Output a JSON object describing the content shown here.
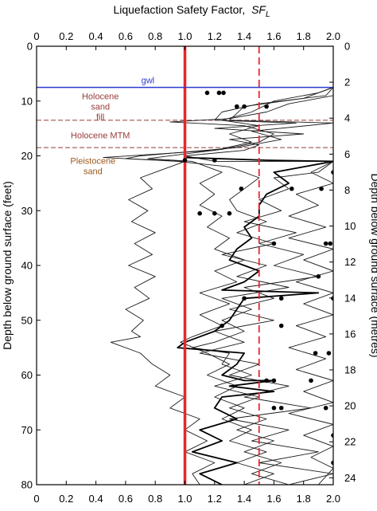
{
  "chart_data": {
    "type": "line",
    "title": "",
    "top_axis_label": "Liquefaction Safety Factor,",
    "top_axis_symbol": "SF",
    "top_axis_subscript": "L",
    "bottom_axis_label": "",
    "left_axis_label": "Depth below ground surface (feet)",
    "right_axis_label": "Depth below ground surface (metres)",
    "xlim": [
      0,
      2.0
    ],
    "x_ticks": [
      "0",
      "0.2",
      "0.4",
      "0.6",
      "0.8",
      "1.0",
      "1.2",
      "1.4",
      "1.6",
      "1.8",
      "2.0"
    ],
    "ylim_feet": [
      0,
      80
    ],
    "y_ticks_feet": [
      "0",
      "10",
      "20",
      "30",
      "40",
      "50",
      "60",
      "70",
      "80"
    ],
    "y_ticks_metres": [
      "0",
      "2",
      "4",
      "6",
      "8",
      "10",
      "12",
      "14",
      "16",
      "18",
      "20",
      "22",
      "24"
    ],
    "reference_lines": [
      {
        "x": 1.0,
        "style": "solid",
        "color": "#e8262a"
      },
      {
        "x": 1.5,
        "style": "dashed",
        "color": "#e8262a"
      }
    ],
    "gwl": {
      "depth_ft": 7.5,
      "label": "gwl",
      "color": "#2b3bcf"
    },
    "layer_boundaries_ft": [
      13.5,
      18.5
    ],
    "layers": [
      {
        "lines": [
          "Holocene",
          "sand",
          "fill"
        ],
        "color": "#9b3b3b"
      },
      {
        "lines": [
          "Holocene MTM"
        ],
        "color": "#9b3b3b"
      },
      {
        "lines": [
          "Pleistocene",
          "sand"
        ],
        "color": "#9c5a1e"
      }
    ],
    "grid": false,
    "series": [
      {
        "values": [
          [
            2.0,
            0
          ],
          [
            2.0,
            7.5
          ],
          [
            1.95,
            9
          ],
          [
            1.5,
            10.5
          ],
          [
            1.25,
            12
          ],
          [
            1.2,
            13.5
          ],
          [
            1.75,
            14
          ],
          [
            1.2,
            15
          ],
          [
            1.8,
            16
          ],
          [
            1.3,
            17
          ],
          [
            1.5,
            18
          ],
          [
            1.4,
            19
          ],
          [
            1.0,
            20
          ],
          [
            1.2,
            21
          ],
          [
            2.0,
            21
          ],
          [
            1.9,
            23
          ],
          [
            1.6,
            24
          ],
          [
            1.7,
            26
          ],
          [
            1.5,
            28
          ],
          [
            1.65,
            30
          ],
          [
            1.4,
            32
          ],
          [
            1.75,
            34
          ],
          [
            1.5,
            36
          ],
          [
            1.8,
            38
          ],
          [
            1.6,
            40
          ],
          [
            1.9,
            42
          ],
          [
            1.4,
            44
          ],
          [
            1.6,
            46
          ],
          [
            1.3,
            48
          ],
          [
            1.6,
            50
          ],
          [
            1.2,
            52
          ],
          [
            1.4,
            54
          ],
          [
            1.1,
            56
          ],
          [
            1.5,
            58
          ],
          [
            1.3,
            60
          ],
          [
            1.7,
            62
          ],
          [
            1.4,
            64
          ],
          [
            1.85,
            66
          ],
          [
            1.3,
            68
          ],
          [
            1.7,
            70
          ],
          [
            1.45,
            72
          ],
          [
            1.9,
            74
          ],
          [
            1.5,
            76
          ],
          [
            2.0,
            78
          ],
          [
            1.7,
            80
          ]
        ]
      },
      {
        "values": [
          [
            2.0,
            7.5
          ],
          [
            1.8,
            9.5
          ],
          [
            1.4,
            11
          ],
          [
            1.3,
            13.5
          ],
          [
            2.0,
            14
          ],
          [
            1.45,
            15.5
          ],
          [
            1.65,
            17
          ],
          [
            1.35,
            18.5
          ],
          [
            0.7,
            20
          ],
          [
            0.6,
            20.5
          ],
          [
            1.0,
            21
          ],
          [
            0.9,
            22
          ],
          [
            0.8,
            23
          ],
          [
            0.7,
            24
          ],
          [
            0.78,
            26
          ],
          [
            0.62,
            28
          ],
          [
            0.75,
            30
          ],
          [
            0.64,
            32
          ],
          [
            0.8,
            34
          ],
          [
            0.66,
            36
          ],
          [
            0.78,
            38
          ],
          [
            0.62,
            40
          ],
          [
            0.8,
            42
          ],
          [
            0.66,
            44
          ],
          [
            0.76,
            46
          ],
          [
            0.6,
            48
          ],
          [
            0.72,
            50
          ],
          [
            0.64,
            52
          ],
          [
            0.7,
            53
          ],
          [
            0.5,
            54
          ],
          [
            0.7,
            56
          ],
          [
            0.78,
            58
          ],
          [
            0.9,
            60
          ],
          [
            0.8,
            62
          ],
          [
            1.0,
            64
          ],
          [
            0.9,
            66
          ],
          [
            1.1,
            68
          ],
          [
            1.0,
            70
          ],
          [
            1.15,
            72
          ],
          [
            1.0,
            74
          ],
          [
            1.2,
            76
          ],
          [
            1.05,
            78
          ],
          [
            1.1,
            80
          ]
        ]
      },
      {
        "values": [
          [
            2.0,
            7.5
          ],
          [
            1.9,
            8.5
          ],
          [
            1.6,
            10
          ],
          [
            1.45,
            12
          ],
          [
            1.25,
            13.5
          ],
          [
            1.5,
            14.5
          ],
          [
            1.3,
            16
          ],
          [
            1.45,
            17.5
          ],
          [
            1.2,
            19
          ],
          [
            0.45,
            20.3
          ],
          [
            0.95,
            21
          ],
          [
            1.3,
            22
          ],
          [
            1.5,
            24
          ],
          [
            1.4,
            26
          ],
          [
            1.3,
            28
          ],
          [
            1.35,
            30
          ],
          [
            1.55,
            32
          ],
          [
            1.35,
            34
          ],
          [
            1.6,
            36
          ],
          [
            1.25,
            38
          ],
          [
            1.55,
            40
          ],
          [
            1.35,
            42
          ],
          [
            1.7,
            44
          ],
          [
            1.25,
            46
          ],
          [
            1.45,
            48
          ],
          [
            1.25,
            50
          ],
          [
            1.4,
            52
          ],
          [
            1.2,
            54
          ],
          [
            1.05,
            55
          ],
          [
            1.3,
            56
          ],
          [
            1.25,
            58
          ],
          [
            1.45,
            60
          ],
          [
            1.2,
            62
          ],
          [
            1.5,
            64
          ],
          [
            1.3,
            66
          ],
          [
            1.55,
            68
          ],
          [
            1.35,
            70
          ],
          [
            1.6,
            72
          ],
          [
            1.4,
            74
          ],
          [
            1.65,
            76
          ],
          [
            1.45,
            78
          ],
          [
            1.7,
            80
          ]
        ]
      },
      {
        "values": [
          [
            2.0,
            9
          ],
          [
            1.7,
            10.5
          ],
          [
            1.55,
            12
          ],
          [
            1.3,
            13.2
          ],
          [
            0.9,
            13.8
          ],
          [
            1.4,
            14.5
          ],
          [
            1.6,
            16
          ],
          [
            1.5,
            17.5
          ],
          [
            1.25,
            18.8
          ],
          [
            0.75,
            20.5
          ],
          [
            1.05,
            21
          ],
          [
            1.25,
            23
          ],
          [
            1.1,
            25
          ],
          [
            1.2,
            27
          ],
          [
            1.1,
            29
          ],
          [
            1.25,
            31
          ],
          [
            1.15,
            33
          ],
          [
            1.3,
            35
          ],
          [
            1.2,
            37
          ],
          [
            1.4,
            39
          ],
          [
            1.2,
            41
          ],
          [
            1.35,
            43
          ],
          [
            1.1,
            45
          ],
          [
            1.3,
            47
          ],
          [
            1.1,
            49
          ],
          [
            1.25,
            51
          ],
          [
            1.05,
            53
          ],
          [
            0.97,
            54
          ],
          [
            1.15,
            56
          ],
          [
            1.3,
            58
          ],
          [
            1.15,
            60
          ],
          [
            1.35,
            62
          ],
          [
            1.2,
            64
          ],
          [
            1.4,
            66
          ],
          [
            1.25,
            68
          ],
          [
            1.45,
            70
          ],
          [
            1.3,
            72
          ],
          [
            1.55,
            74
          ],
          [
            1.35,
            76
          ],
          [
            1.6,
            78
          ],
          [
            1.4,
            80
          ]
        ]
      },
      {
        "values": [
          [
            2.0,
            21
          ],
          [
            1.85,
            23
          ],
          [
            2.0,
            25
          ],
          [
            1.75,
            27
          ],
          [
            1.9,
            29
          ],
          [
            1.7,
            31
          ],
          [
            1.95,
            33
          ],
          [
            1.7,
            35
          ],
          [
            2.0,
            37
          ],
          [
            1.8,
            39
          ],
          [
            2.0,
            41
          ],
          [
            1.75,
            43
          ],
          [
            2.0,
            45
          ],
          [
            1.8,
            47
          ],
          [
            2.0,
            49
          ],
          [
            1.75,
            51
          ],
          [
            1.95,
            53
          ],
          [
            1.7,
            55
          ],
          [
            1.95,
            57
          ],
          [
            1.75,
            59
          ],
          [
            2.0,
            61
          ],
          [
            1.8,
            63
          ],
          [
            2.0,
            65
          ],
          [
            1.7,
            67
          ],
          [
            2.0,
            69
          ],
          [
            1.8,
            71
          ],
          [
            2.0,
            73
          ],
          [
            1.85,
            75
          ],
          [
            2.0,
            77
          ],
          [
            1.9,
            80
          ]
        ]
      }
    ],
    "series_bold": [
      {
        "values": [
          [
            1.0,
            20.3
          ],
          [
            1.55,
            20.8
          ],
          [
            2.0,
            21.0
          ],
          [
            1.8,
            22
          ],
          [
            1.6,
            23
          ],
          [
            1.7,
            25
          ],
          [
            1.55,
            27
          ],
          [
            1.5,
            29
          ],
          [
            1.5,
            31
          ],
          [
            1.4,
            33
          ],
          [
            1.45,
            35
          ],
          [
            1.35,
            37
          ],
          [
            1.3,
            39
          ],
          [
            1.5,
            41
          ],
          [
            1.4,
            43
          ],
          [
            1.25,
            44.5
          ],
          [
            1.9,
            45
          ],
          [
            1.4,
            46
          ],
          [
            1.35,
            48
          ],
          [
            1.3,
            50
          ],
          [
            1.2,
            52
          ],
          [
            1.0,
            54
          ],
          [
            0.95,
            55
          ],
          [
            1.4,
            56
          ],
          [
            1.35,
            58
          ],
          [
            1.25,
            60
          ],
          [
            1.4,
            61
          ],
          [
            1.6,
            61
          ],
          [
            1.3,
            62
          ],
          [
            1.6,
            63
          ],
          [
            1.25,
            64
          ],
          [
            1.2,
            66
          ],
          [
            1.35,
            68
          ],
          [
            1.1,
            70
          ],
          [
            1.25,
            72
          ],
          [
            1.05,
            74
          ],
          [
            1.35,
            76
          ],
          [
            1.1,
            78
          ],
          [
            1.25,
            80
          ]
        ]
      }
    ],
    "points": [
      [
        1.15,
        8.5
      ],
      [
        1.23,
        8.5
      ],
      [
        1.26,
        8.5
      ],
      [
        1.35,
        11
      ],
      [
        1.4,
        11
      ],
      [
        1.55,
        11
      ],
      [
        1.0,
        20.8
      ],
      [
        1.2,
        20.8
      ],
      [
        2.0,
        23
      ],
      [
        1.1,
        30.5
      ],
      [
        1.2,
        30.5
      ],
      [
        1.3,
        30.5
      ],
      [
        1.38,
        26
      ],
      [
        1.72,
        26
      ],
      [
        1.92,
        26
      ],
      [
        1.6,
        36
      ],
      [
        1.95,
        36
      ],
      [
        1.98,
        36
      ],
      [
        1.9,
        42
      ],
      [
        1.4,
        46
      ],
      [
        1.65,
        46
      ],
      [
        2.0,
        46
      ],
      [
        1.65,
        51
      ],
      [
        1.25,
        51
      ],
      [
        1.88,
        56
      ],
      [
        1.97,
        56
      ],
      [
        1.55,
        61
      ],
      [
        1.6,
        61
      ],
      [
        1.85,
        61
      ],
      [
        1.6,
        66
      ],
      [
        1.65,
        66
      ],
      [
        1.95,
        66
      ],
      [
        2.0,
        71
      ],
      [
        2.0,
        76
      ]
    ]
  }
}
